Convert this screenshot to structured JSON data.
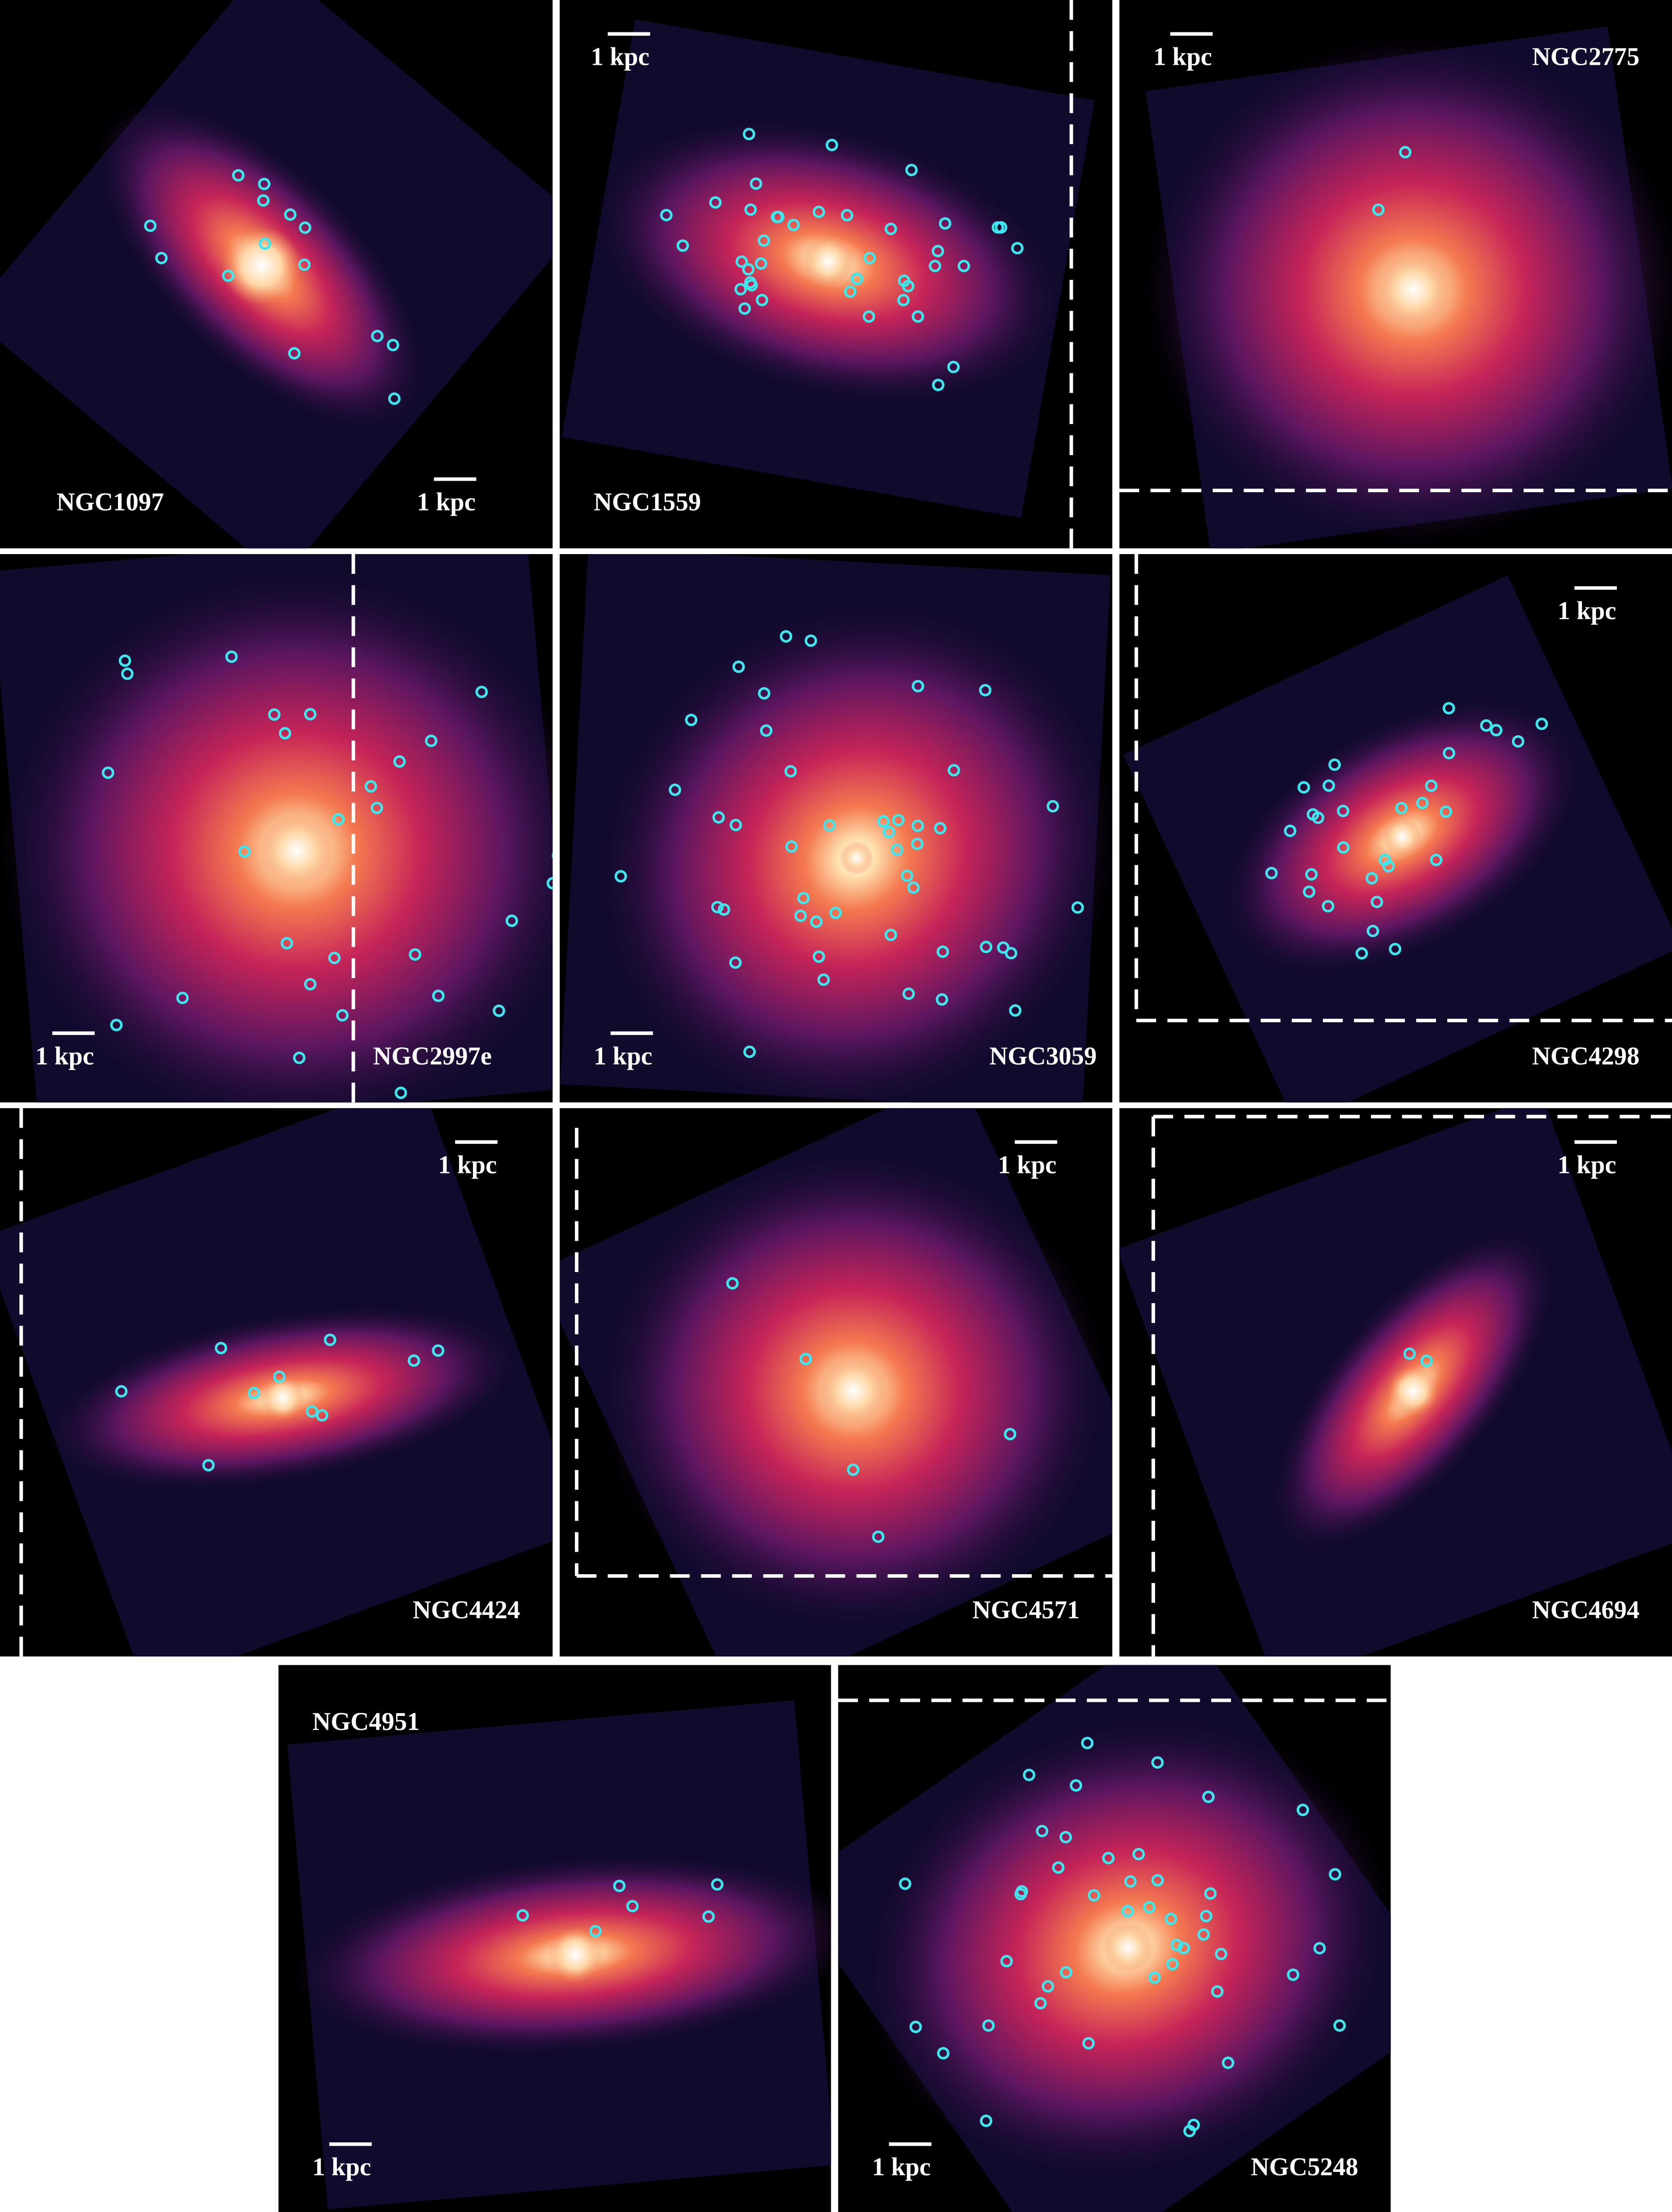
{
  "panels": [
    {
      "name": "NGC1097",
      "scale_label": "1 kpc"
    },
    {
      "name": "NGC1559",
      "scale_label": "1 kpc"
    },
    {
      "name": "NGC2775",
      "scale_label": "1 kpc"
    },
    {
      "name": "NGC2997e",
      "scale_label": "1 kpc"
    },
    {
      "name": "NGC3059",
      "scale_label": "1 kpc"
    },
    {
      "name": "NGC4298",
      "scale_label": "1 kpc"
    },
    {
      "name": "NGC4424",
      "scale_label": "1 kpc"
    },
    {
      "name": "NGC4571",
      "scale_label": "1 kpc"
    },
    {
      "name": "NGC4694",
      "scale_label": "1 kpc"
    },
    {
      "name": "NGC4951",
      "scale_label": "1 kpc"
    },
    {
      "name": "NGC5248",
      "scale_label": "1 kpc"
    }
  ]
}
